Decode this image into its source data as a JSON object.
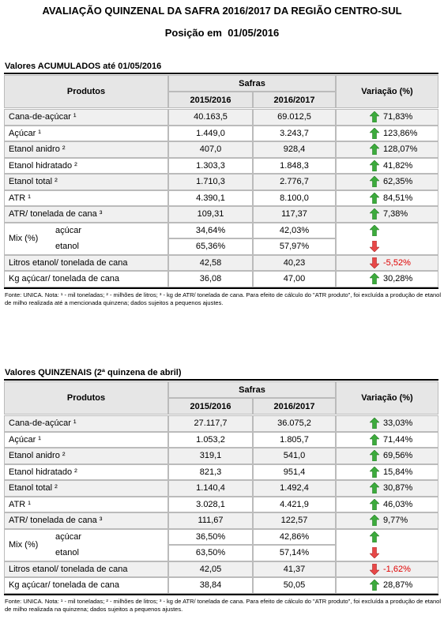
{
  "header": {
    "title": "AVALIAÇÃO QUINZENAL DA SAFRA 2016/2017 DA REGIÃO CENTRO-SUL",
    "subtitle": "Posição em",
    "date": "01/05/2016"
  },
  "tables": [
    {
      "section_title": "Valores ACUMULADOS até 01/05/2016",
      "columns": {
        "product": "Produtos",
        "group": "Safras",
        "year1": "2015/2016",
        "year2": "2016/2017",
        "variation": "Variação (%)"
      },
      "rows": [
        {
          "label": "Cana-de-açúcar ¹",
          "v1": "40.163,5",
          "v2": "69.012,5",
          "variation": "71,83%",
          "trend": "up"
        },
        {
          "label": "Açúcar ¹",
          "v1": "1.449,0",
          "v2": "3.243,7",
          "variation": "123,86%",
          "trend": "up"
        },
        {
          "label": "Etanol anidro ²",
          "v1": "407,0",
          "v2": "928,4",
          "variation": "128,07%",
          "trend": "up"
        },
        {
          "label": "Etanol hidratado ²",
          "v1": "1.303,3",
          "v2": "1.848,3",
          "variation": "41,82%",
          "trend": "up"
        },
        {
          "label": "Etanol total ²",
          "v1": "1.710,3",
          "v2": "2.776,7",
          "variation": "62,35%",
          "trend": "up"
        },
        {
          "label": "ATR ¹",
          "v1": "4.390,1",
          "v2": "8.100,0",
          "variation": "84,51%",
          "trend": "up"
        },
        {
          "label": "ATR/ tonelada de cana ³",
          "v1": "109,31",
          "v2": "117,37",
          "variation": "7,38%",
          "trend": "up"
        },
        {
          "label": "Mix (%)",
          "parts": [
            {
              "label": "açúcar",
              "v1": "34,64%",
              "v2": "42,03%",
              "trend": "up"
            },
            {
              "label": "etanol",
              "v1": "65,36%",
              "v2": "57,97%",
              "trend": "down"
            }
          ]
        },
        {
          "label": "Litros etanol/ tonelada de cana",
          "v1": "42,58",
          "v2": "40,23",
          "variation": "-5,52%",
          "trend": "down"
        },
        {
          "label": "Kg açúcar/ tonelada de cana",
          "v1": "36,08",
          "v2": "47,00",
          "variation": "30,28%",
          "trend": "up"
        }
      ],
      "footnote": "Fonte: UNICA. Nota: ¹ - mil toneladas; ² - milhões de litros; ³ - kg de ATR/ tonelada de cana. Para efeito de cálculo do \"ATR produto\", foi excluída a produção de etanol de milho realizada até a mencionada quinzena; dados sujeitos a pequenos ajustes."
    },
    {
      "section_title": "Valores QUINZENAIS (2ª quinzena de abril)",
      "columns": {
        "product": "Produtos",
        "group": "Safras",
        "year1": "2015/2016",
        "year2": "2016/2017",
        "variation": "Variação (%)"
      },
      "rows": [
        {
          "label": "Cana-de-açúcar ¹",
          "v1": "27.117,7",
          "v2": "36.075,2",
          "variation": "33,03%",
          "trend": "up"
        },
        {
          "label": "Açúcar ¹",
          "v1": "1.053,2",
          "v2": "1.805,7",
          "variation": "71,44%",
          "trend": "up"
        },
        {
          "label": "Etanol anidro ²",
          "v1": "319,1",
          "v2": "541,0",
          "variation": "69,56%",
          "trend": "up"
        },
        {
          "label": "Etanol hidratado ²",
          "v1": "821,3",
          "v2": "951,4",
          "variation": "15,84%",
          "trend": "up"
        },
        {
          "label": "Etanol total ²",
          "v1": "1.140,4",
          "v2": "1.492,4",
          "variation": "30,87%",
          "trend": "up"
        },
        {
          "label": "ATR ¹",
          "v1": "3.028,1",
          "v2": "4.421,9",
          "variation": "46,03%",
          "trend": "up"
        },
        {
          "label": "ATR/ tonelada de cana ³",
          "v1": "111,67",
          "v2": "122,57",
          "variation": "9,77%",
          "trend": "up"
        },
        {
          "label": "Mix (%)",
          "parts": [
            {
              "label": "açúcar",
              "v1": "36,50%",
              "v2": "42,86%",
              "trend": "up"
            },
            {
              "label": "etanol",
              "v1": "63,50%",
              "v2": "57,14%",
              "trend": "down"
            }
          ]
        },
        {
          "label": "Litros etanol/ tonelada de cana",
          "v1": "42,05",
          "v2": "41,37",
          "variation": "-1,62%",
          "trend": "down"
        },
        {
          "label": "Kg açúcar/ tonelada de cana",
          "v1": "38,84",
          "v2": "50,05",
          "variation": "28,87%",
          "trend": "up"
        }
      ],
      "footnote": "Fonte: UNICA. Nota: ¹ - mil toneladas; ² - milhões de litros; ³ - kg de ATR/ tonelada de cana. Para efeito de cálculo do \"ATR produto\", foi excluída a produção de etanol de milho realizada na quinzena; dados sujeitos a pequenos ajustes."
    }
  ]
}
